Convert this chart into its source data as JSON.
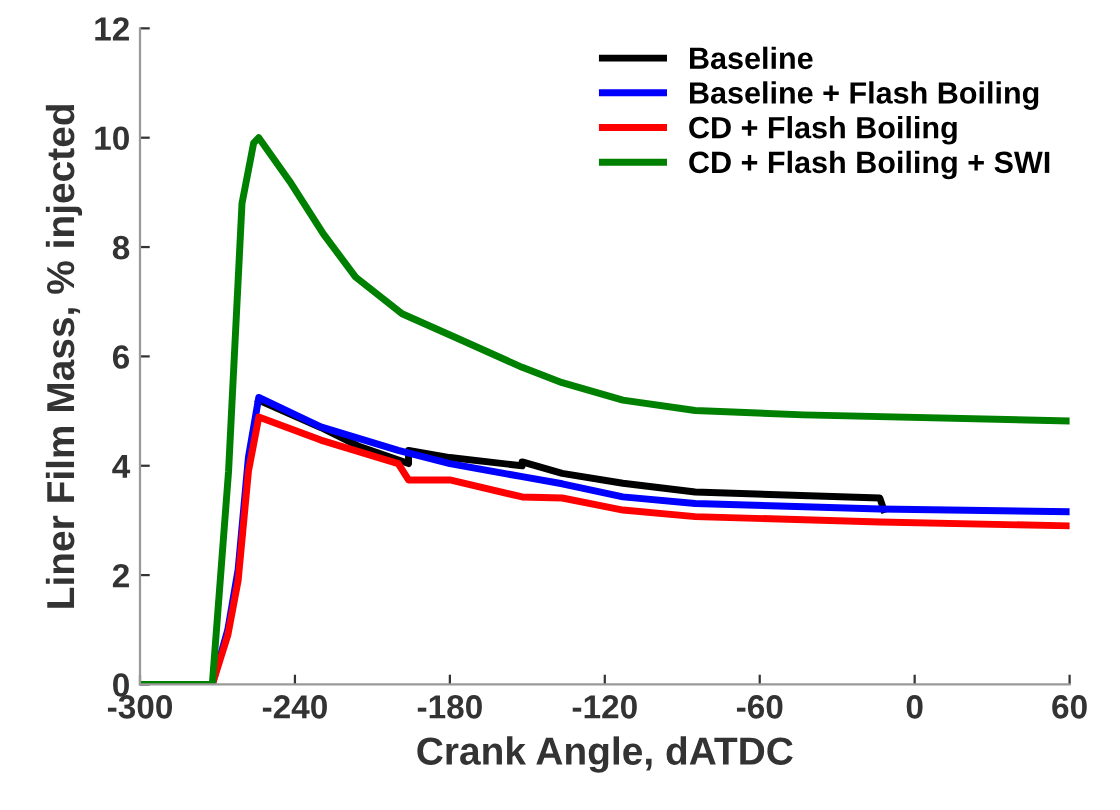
{
  "chart_data": {
    "type": "line",
    "xlabel": "Crank Angle, dATDC",
    "ylabel": "Liner Film Mass, % injected",
    "xlim": [
      -300,
      60
    ],
    "xticks": [
      -300,
      -240,
      -180,
      -120,
      -60,
      0,
      60
    ],
    "ylim": [
      0,
      12
    ],
    "yticks": [
      0,
      2,
      4,
      6,
      8,
      10,
      12
    ],
    "grid": false,
    "legend": "top right",
    "marker": "none",
    "line_style": "solid",
    "series": [
      {
        "name": "Baseline",
        "color": "#000000",
        "x": [
          -300,
          -272,
          -266,
          -262,
          -258,
          -254,
          -230,
          -215,
          -196,
          -196,
          -180,
          -152,
          -152,
          -136.5,
          -113,
          -85,
          -13.5,
          -12
        ],
        "values": [
          0,
          0,
          null,
          null,
          null,
          5.2,
          4.7,
          4.35,
          4.04,
          4.28,
          4.15,
          4.0,
          4.07,
          3.86,
          3.68,
          3.52,
          3.41,
          3.2
        ]
      },
      {
        "name": "Baseline + Flash Boiling",
        "color": "#0000ff",
        "x": [
          -300,
          -272,
          -266,
          -262,
          -258,
          -254,
          -230,
          -200,
          -180,
          -152,
          -136.5,
          -113,
          -85,
          -13.5,
          60
        ],
        "values": [
          0,
          0,
          1.0,
          2.1,
          4.16,
          5.25,
          4.71,
          4.28,
          4.04,
          3.8,
          3.67,
          3.43,
          3.31,
          3.21,
          3.16
        ]
      },
      {
        "name": "CD + Flash Boiling",
        "color": "#ff0000",
        "x": [
          -300,
          -272,
          -266,
          -262,
          -258,
          -254,
          -230,
          -200,
          -196,
          -180,
          -152,
          -136.5,
          -113,
          -85,
          -13.5,
          60
        ],
        "values": [
          0,
          0,
          0.9,
          1.9,
          3.9,
          4.89,
          4.47,
          4.04,
          3.74,
          3.74,
          3.43,
          3.41,
          3.19,
          3.07,
          2.97,
          2.9
        ]
      },
      {
        "name": "CD + Flash Boiling + SWI",
        "color": "#008000",
        "x": [
          -300,
          -272,
          -265.7,
          -260.5,
          -256,
          -254,
          -242,
          -229,
          -216.5,
          -198.5,
          -178,
          -152,
          -136.5,
          -113,
          -85,
          -43,
          60
        ],
        "values": [
          0,
          0,
          3.9,
          8.8,
          9.9,
          10.0,
          9.2,
          8.24,
          7.45,
          6.78,
          6.35,
          5.8,
          5.52,
          5.2,
          5.01,
          4.93,
          4.82
        ]
      }
    ]
  }
}
